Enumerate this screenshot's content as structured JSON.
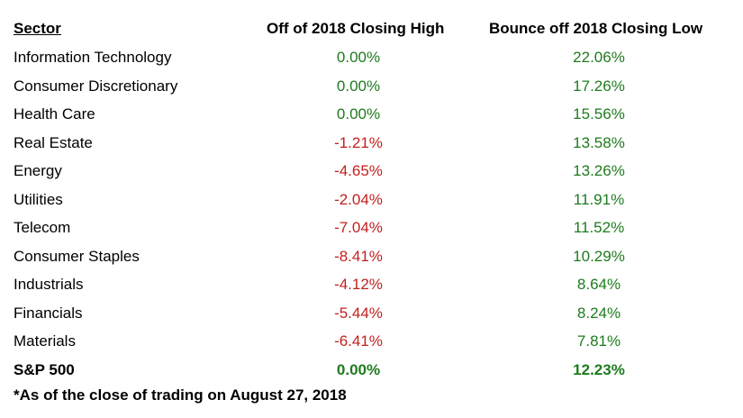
{
  "chart_data": {
    "type": "table",
    "columns": [
      "Sector",
      "Off of 2018 Closing High",
      "Bounce off 2018 Closing Low"
    ],
    "rows": [
      {
        "sector": "Information Technology",
        "off_high": "0.00%",
        "bounce_low": "22.06%",
        "off_value": 0.0,
        "bounce_value": 22.06
      },
      {
        "sector": "Consumer Discretionary",
        "off_high": "0.00%",
        "bounce_low": "17.26%",
        "off_value": 0.0,
        "bounce_value": 17.26
      },
      {
        "sector": "Health Care",
        "off_high": "0.00%",
        "bounce_low": "15.56%",
        "off_value": 0.0,
        "bounce_value": 15.56
      },
      {
        "sector": "Real Estate",
        "off_high": "-1.21%",
        "bounce_low": "13.58%",
        "off_value": -1.21,
        "bounce_value": 13.58
      },
      {
        "sector": "Energy",
        "off_high": "-4.65%",
        "bounce_low": "13.26%",
        "off_value": -4.65,
        "bounce_value": 13.26
      },
      {
        "sector": "Utilities",
        "off_high": "-2.04%",
        "bounce_low": "11.91%",
        "off_value": -2.04,
        "bounce_value": 11.91
      },
      {
        "sector": "Telecom",
        "off_high": "-7.04%",
        "bounce_low": "11.52%",
        "off_value": -7.04,
        "bounce_value": 11.52
      },
      {
        "sector": "Consumer Staples",
        "off_high": "-8.41%",
        "bounce_low": "10.29%",
        "off_value": -8.41,
        "bounce_value": 10.29
      },
      {
        "sector": "Industrials",
        "off_high": "-4.12%",
        "bounce_low": "8.64%",
        "off_value": -4.12,
        "bounce_value": 8.64
      },
      {
        "sector": "Financials",
        "off_high": "-5.44%",
        "bounce_low": "8.24%",
        "off_value": -5.44,
        "bounce_value": 8.24
      },
      {
        "sector": "Materials",
        "off_high": "-6.41%",
        "bounce_low": "7.81%",
        "off_value": -6.41,
        "bounce_value": 7.81
      }
    ],
    "total_row": {
      "sector": "S&P 500",
      "off_high": "0.00%",
      "bounce_low": "12.23%",
      "off_value": 0.0,
      "bounce_value": 12.23
    },
    "footnote": "*As of the close of trading on August 27, 2018"
  },
  "colors": {
    "positive_or_zero": "#1e7b1e",
    "negative": "#c0211f",
    "text": "#000000"
  }
}
